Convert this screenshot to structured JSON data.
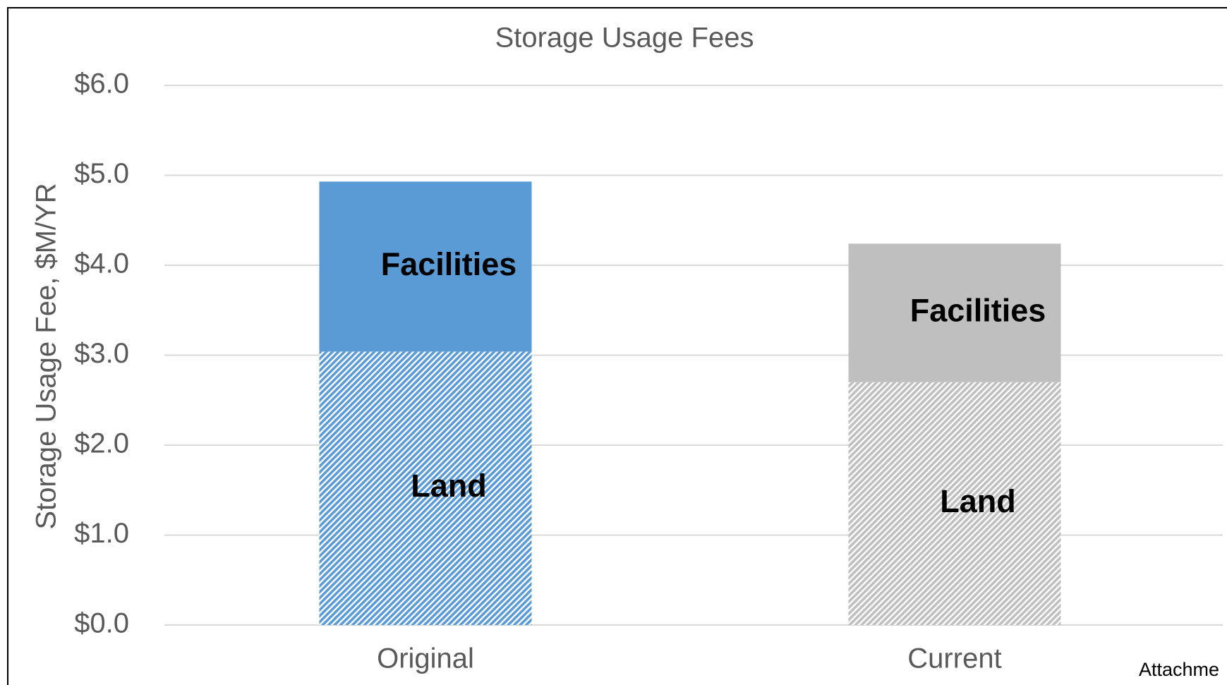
{
  "chart_data": {
    "type": "stacked_bar",
    "title": "Storage Usage Fees",
    "y_label": "Storage Usage Fee, $M/YR",
    "categories": [
      "Original",
      "Current"
    ],
    "series": [
      {
        "name": "Land",
        "colors": [
          "#5b9bd5",
          "#bfbfbf"
        ],
        "hatch": true,
        "values": [
          3.04,
          2.7
        ]
      },
      {
        "name": "Facilities",
        "colors": [
          "#5b9bd5",
          "#bfbfbf"
        ],
        "hatch": false,
        "values": [
          1.89,
          1.54
        ]
      }
    ],
    "ylim": [
      0,
      6
    ],
    "yticks": [
      {
        "value": 0,
        "label": "$0.0"
      },
      {
        "value": 1,
        "label": "$1.0"
      },
      {
        "value": 2,
        "label": "$2.0"
      },
      {
        "value": 3,
        "label": "$3.0"
      },
      {
        "value": 4,
        "label": "$4.0"
      },
      {
        "value": 5,
        "label": "$5.0"
      },
      {
        "value": 6,
        "label": "$6.0"
      }
    ],
    "grid": true,
    "footer": "Attachme"
  }
}
